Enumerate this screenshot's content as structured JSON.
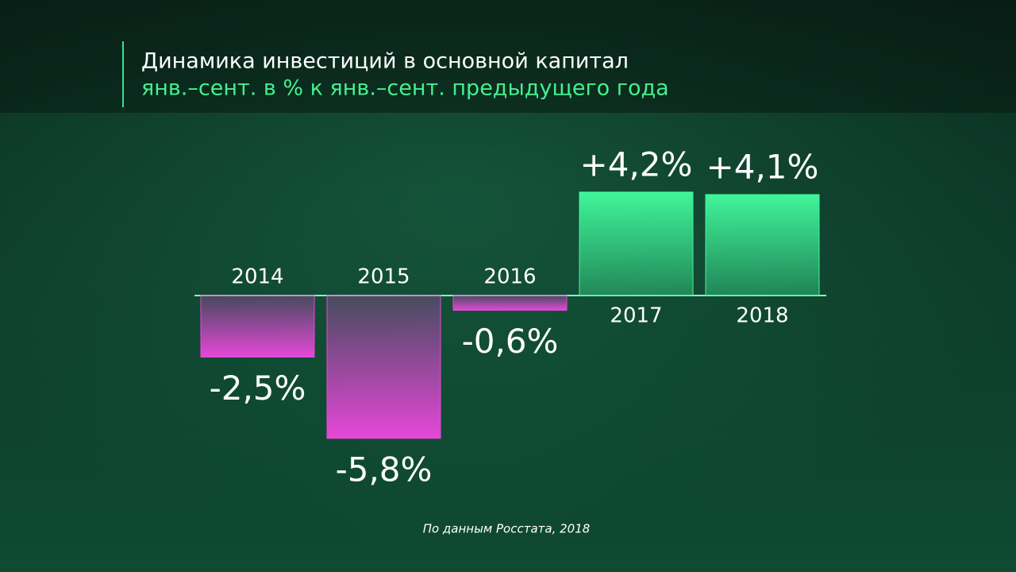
{
  "chart_data": {
    "type": "bar",
    "title": "Динамика инвестиций в основной капитал",
    "subtitle": "янв.–сент. в % к янв.–сент. предыдущего года",
    "categories": [
      "2014",
      "2015",
      "2016",
      "2017",
      "2018"
    ],
    "values": [
      -2.5,
      -5.8,
      -0.6,
      4.2,
      4.1
    ],
    "value_labels": [
      "-2,5%",
      "-5,8%",
      "-0,6%",
      "+4,2%",
      "+4,1%"
    ],
    "positive_color": "#40f59a",
    "negative_color": "#e548d8",
    "source": "По данным Росстата, 2018"
  }
}
